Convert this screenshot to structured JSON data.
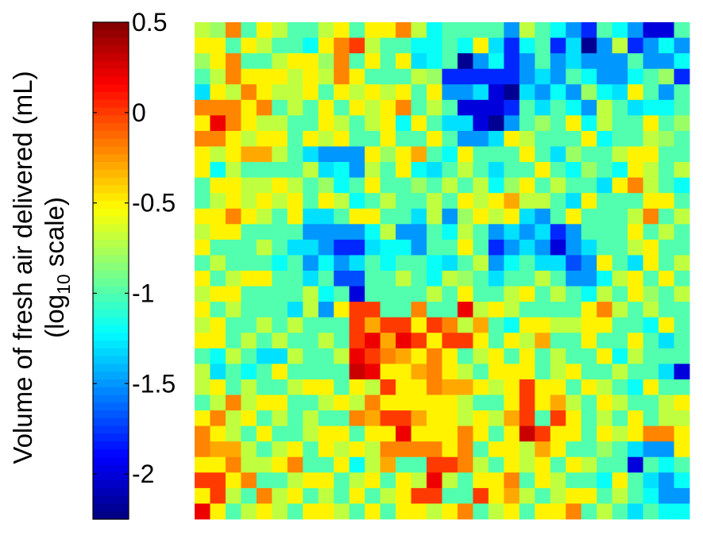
{
  "chart_data": {
    "type": "heatmap",
    "title": "",
    "colorbar": {
      "label_line1": "Volume of fresh air delivered (mL)",
      "label_line2_prefix": "(log",
      "label_line2_sub": "10",
      "label_line2_suffix": " scale)",
      "range": [
        -2.25,
        0.5
      ],
      "ticks": [
        0.5,
        0,
        -0.5,
        -1,
        -1.5,
        -2
      ],
      "tick_labels": [
        "0.5",
        "0",
        "-0.5",
        "-1",
        "-1.5",
        "-2"
      ],
      "colormap": "jet"
    },
    "grid": {
      "rows": 32,
      "cols": 32
    },
    "values": [
      [
        -0.7,
        -0.8,
        -0.2,
        -1.0,
        -0.5,
        -0.7,
        -1.0,
        -1.0,
        -0.7,
        -0.5,
        -1.0,
        -0.5,
        -0.5,
        -0.2,
        -0.7,
        -1.2,
        -1.0,
        -1.0,
        -1.0,
        -1.0,
        -1.5,
        -0.7,
        -1.0,
        -1.2,
        -1.5,
        -1.8,
        -1.0,
        -1.2,
        -1.5,
        -2.0,
        -2.0,
        -1.0
      ],
      [
        -0.5,
        -0.5,
        -1.0,
        -0.5,
        -0.7,
        -1.0,
        -1.0,
        -1.2,
        -0.5,
        -0.2,
        0.0,
        -0.7,
        -1.0,
        -1.0,
        -1.2,
        -1.2,
        -1.0,
        -1.2,
        -0.5,
        -1.3,
        -1.8,
        -1.2,
        -1.0,
        -1.8,
        -1.3,
        -2.2,
        -1.5,
        -0.7,
        -1.8,
        -1.5,
        -1.2,
        -1.5
      ],
      [
        -0.8,
        -0.5,
        -0.2,
        -1.0,
        -1.0,
        -0.7,
        -0.5,
        -0.5,
        -0.8,
        -0.2,
        -1.0,
        -0.5,
        -1.0,
        -0.5,
        -1.3,
        -1.2,
        -1.0,
        -2.2,
        -1.5,
        -1.2,
        -1.8,
        -1.5,
        -1.0,
        -1.5,
        -1.3,
        -1.5,
        -1.5,
        -1.5,
        -1.0,
        -1.5,
        -1.5,
        -1.2
      ],
      [
        -1.0,
        -0.7,
        -0.2,
        -0.5,
        -0.5,
        -0.5,
        -0.7,
        -0.5,
        -0.7,
        -0.2,
        -0.5,
        -1.0,
        -1.0,
        -1.0,
        -0.7,
        -0.8,
        -1.8,
        -1.8,
        -1.8,
        -1.8,
        -1.8,
        -1.5,
        -1.3,
        -1.5,
        -1.0,
        -1.2,
        -1.5,
        -1.5,
        -1.2,
        -1.0,
        -0.8,
        -1.8
      ],
      [
        -1.3,
        -0.5,
        -0.7,
        -0.2,
        -0.5,
        -0.7,
        -0.7,
        -0.5,
        -1.0,
        -0.5,
        -0.7,
        -0.5,
        -0.7,
        -0.5,
        -1.0,
        -0.5,
        -1.5,
        -1.5,
        -1.3,
        -2.0,
        -2.2,
        -1.3,
        -1.5,
        -1.2,
        -1.5,
        -0.8,
        -1.2,
        -1.3,
        -0.5,
        -1.0,
        -1.5,
        -1.0
      ],
      [
        -0.2,
        -0.2,
        -0.2,
        -0.5,
        -0.2,
        -1.0,
        -0.7,
        -1.0,
        -0.5,
        -1.0,
        -0.5,
        -0.7,
        -0.5,
        -0.2,
        -1.0,
        -0.7,
        -1.0,
        -2.0,
        -2.0,
        -2.0,
        -1.8,
        -1.0,
        -1.3,
        -1.0,
        -1.2,
        -1.5,
        -0.7,
        -1.0,
        -1.3,
        -1.2,
        -1.2,
        -1.0
      ],
      [
        -0.5,
        0.2,
        -0.2,
        -0.5,
        -0.7,
        -0.7,
        -1.0,
        -1.0,
        -0.5,
        -0.7,
        -1.0,
        -0.7,
        -0.5,
        -1.2,
        -0.5,
        -1.0,
        -1.3,
        -1.3,
        -2.0,
        -2.2,
        -1.5,
        -1.0,
        -0.8,
        -1.0,
        -0.5,
        -1.2,
        -0.7,
        -1.0,
        -1.0,
        -0.5,
        -1.0,
        -0.8
      ],
      [
        -0.2,
        -0.2,
        -0.5,
        -0.7,
        -0.5,
        -0.5,
        -1.0,
        -0.5,
        -0.7,
        -0.5,
        -1.0,
        -1.0,
        -0.5,
        -1.0,
        -1.0,
        -0.5,
        -1.0,
        -1.5,
        -1.5,
        -1.3,
        -0.5,
        -0.7,
        -1.0,
        -1.0,
        -1.0,
        -0.5,
        -1.2,
        -1.0,
        -1.0,
        -0.7,
        -0.8,
        -1.0
      ],
      [
        -0.5,
        -0.7,
        -0.5,
        -0.3,
        -0.3,
        -0.7,
        -1.0,
        -1.3,
        -1.5,
        -1.5,
        -1.5,
        -0.5,
        -0.8,
        -0.5,
        -0.3,
        -1.0,
        -1.2,
        -0.5,
        -1.0,
        -1.0,
        -1.0,
        -0.5,
        -1.0,
        -1.3,
        -0.8,
        -1.0,
        -1.0,
        -0.7,
        -0.5,
        -0.5,
        -1.0,
        -1.0
      ],
      [
        -0.5,
        -1.2,
        -0.7,
        -1.0,
        -1.0,
        -1.0,
        -1.0,
        -0.7,
        -1.3,
        -1.2,
        -1.5,
        -0.7,
        -1.0,
        -0.5,
        -1.2,
        -1.3,
        -1.0,
        -0.7,
        -1.0,
        -1.3,
        -1.0,
        -1.0,
        -0.5,
        -1.0,
        -1.2,
        -0.8,
        -1.0,
        -1.2,
        -0.5,
        -0.7,
        -1.0,
        -0.7
      ],
      [
        -1.0,
        -0.5,
        -0.5,
        -0.7,
        -0.7,
        -0.5,
        -0.7,
        -1.0,
        -0.8,
        -1.2,
        -1.0,
        -0.5,
        -1.0,
        -1.0,
        -0.8,
        -1.0,
        -0.7,
        -1.0,
        -0.7,
        -1.2,
        -0.8,
        -0.5,
        -1.0,
        -0.7,
        -1.0,
        -1.0,
        -1.3,
        -0.5,
        -0.2,
        -0.7,
        -1.0,
        -1.2
      ],
      [
        -1.0,
        -0.7,
        -0.5,
        -0.7,
        -0.5,
        -0.7,
        -0.5,
        -1.0,
        -0.5,
        -0.7,
        -1.2,
        -1.0,
        -0.7,
        -1.0,
        -1.0,
        -0.7,
        -1.0,
        -0.5,
        -0.7,
        -0.5,
        -0.3,
        -0.7,
        -0.7,
        -1.0,
        -1.3,
        -0.5,
        -1.0,
        -1.0,
        -1.0,
        -0.5,
        -0.5,
        -1.0
      ],
      [
        -0.5,
        -0.5,
        -0.2,
        -0.5,
        -0.7,
        -1.0,
        -0.5,
        -1.3,
        -1.3,
        -1.0,
        -0.5,
        -0.5,
        -1.0,
        -1.0,
        -1.3,
        -0.7,
        -1.5,
        -0.8,
        -0.5,
        -0.7,
        -0.5,
        -1.3,
        -1.5,
        -1.0,
        -0.5,
        -1.0,
        -1.0,
        -1.0,
        -0.7,
        -0.2,
        -1.0,
        -0.7
      ],
      [
        -0.7,
        -0.5,
        -0.5,
        -1.0,
        -1.0,
        -1.0,
        -1.0,
        -1.5,
        -1.5,
        -1.5,
        -1.5,
        -1.2,
        -0.7,
        -1.5,
        -1.5,
        -1.0,
        -1.2,
        -0.7,
        -1.0,
        -1.5,
        -1.3,
        -1.5,
        -1.3,
        -1.8,
        -1.5,
        -1.0,
        -1.0,
        -1.0,
        -0.5,
        -1.0,
        -0.7,
        -1.0
      ],
      [
        -0.5,
        -1.0,
        -1.0,
        -1.0,
        -0.7,
        -1.0,
        -1.3,
        -1.3,
        -1.5,
        -1.8,
        -1.8,
        -1.3,
        -1.2,
        -1.2,
        -1.5,
        -1.0,
        -1.0,
        -0.5,
        -1.0,
        -1.8,
        -1.5,
        -1.3,
        -1.5,
        -2.0,
        -1.5,
        -1.3,
        -1.0,
        -1.0,
        -0.7,
        -0.5,
        -1.0,
        -1.0
      ],
      [
        -1.0,
        -0.7,
        -1.0,
        -1.0,
        -1.0,
        -1.2,
        -1.0,
        -1.5,
        -1.2,
        -1.5,
        -1.3,
        -1.0,
        -1.2,
        -1.0,
        -1.0,
        -1.2,
        -1.3,
        -1.0,
        -0.7,
        -1.5,
        -1.2,
        -1.0,
        -1.3,
        -1.3,
        -1.7,
        -1.5,
        -0.5,
        -1.0,
        -1.3,
        -0.5,
        -1.0,
        -0.7
      ],
      [
        -0.5,
        -1.0,
        -0.7,
        -0.5,
        -0.5,
        -1.0,
        -1.0,
        -1.3,
        -1.0,
        -1.7,
        -1.7,
        -1.0,
        -1.0,
        -0.7,
        -1.0,
        -1.2,
        -0.7,
        -0.8,
        -1.0,
        -1.3,
        -1.0,
        -1.0,
        -0.7,
        -1.0,
        -1.5,
        -1.5,
        -1.2,
        -0.7,
        -0.5,
        -1.0,
        -0.5,
        -1.0
      ],
      [
        -0.7,
        -0.5,
        -0.5,
        -1.0,
        -1.0,
        -1.0,
        -1.0,
        -0.7,
        -1.2,
        -1.0,
        -2.0,
        -1.0,
        -1.0,
        -1.0,
        -1.0,
        -0.7,
        -1.0,
        -0.5,
        -1.0,
        -1.0,
        -0.7,
        -0.5,
        -1.0,
        -0.7,
        -1.0,
        -1.2,
        -0.7,
        -1.0,
        -0.5,
        -0.8,
        -1.0,
        -0.7
      ],
      [
        -0.5,
        -1.0,
        -0.7,
        -1.0,
        -1.0,
        -1.0,
        -1.3,
        -0.7,
        -1.5,
        -0.5,
        0.0,
        0.0,
        -1.0,
        -1.0,
        -0.2,
        -1.0,
        -1.0,
        0.2,
        -0.7,
        -0.5,
        -0.7,
        -1.0,
        -1.0,
        -1.0,
        -1.0,
        -0.5,
        -0.2,
        -0.7,
        -1.0,
        -0.7,
        -1.0,
        -1.0
      ],
      [
        -0.7,
        -0.5,
        -1.0,
        -1.0,
        -0.7,
        -1.0,
        -0.7,
        -1.0,
        -1.0,
        -1.0,
        0.0,
        -0.3,
        0.0,
        0.0,
        -0.5,
        0.0,
        -0.2,
        -0.7,
        -0.3,
        -1.0,
        -1.2,
        -0.5,
        -0.5,
        -0.7,
        -0.7,
        -0.5,
        -0.5,
        -1.0,
        -1.0,
        -1.2,
        -0.5,
        -1.0
      ],
      [
        -0.5,
        -0.5,
        -1.0,
        -0.7,
        -1.0,
        -0.7,
        -1.0,
        -1.0,
        -0.7,
        -1.0,
        0.0,
        0.2,
        -0.3,
        0.2,
        0.0,
        -0.5,
        0.0,
        0.0,
        -0.5,
        -1.0,
        -0.5,
        -0.7,
        -0.3,
        -1.0,
        -1.0,
        -0.5,
        -1.0,
        -1.0,
        -0.5,
        -1.0,
        -1.3,
        -1.0
      ],
      [
        -1.0,
        -1.2,
        -0.7,
        -1.0,
        -1.3,
        -1.3,
        -0.7,
        -1.0,
        -1.0,
        -0.7,
        0.2,
        0.0,
        -0.2,
        -0.3,
        -0.5,
        -0.2,
        -0.5,
        -1.0,
        -0.7,
        -0.5,
        -1.0,
        -0.5,
        -1.0,
        -0.7,
        -1.0,
        -1.0,
        -0.5,
        -1.2,
        -0.7,
        -1.0,
        -1.0,
        -1.0
      ],
      [
        -0.7,
        -1.3,
        -1.0,
        -1.2,
        -1.0,
        -0.5,
        -1.0,
        -1.0,
        -1.0,
        -1.0,
        0.3,
        0.2,
        -0.5,
        -0.5,
        -0.3,
        -0.2,
        -0.5,
        -0.7,
        -1.0,
        -0.5,
        -0.5,
        -0.5,
        -1.0,
        -0.7,
        -0.5,
        -1.0,
        -1.0,
        -0.7,
        -1.0,
        -1.0,
        -1.3,
        -2.0
      ],
      [
        -0.7,
        -0.5,
        -1.0,
        -0.7,
        -1.0,
        -1.0,
        -0.7,
        -0.5,
        -0.5,
        -1.0,
        -0.5,
        -0.7,
        0.0,
        -0.5,
        -0.5,
        -0.2,
        -0.3,
        -0.3,
        -0.5,
        -0.7,
        -0.5,
        0.0,
        -0.5,
        -0.5,
        -1.0,
        -0.5,
        -0.7,
        -1.0,
        -1.2,
        -0.5,
        -1.0,
        -1.0
      ],
      [
        -1.0,
        -0.7,
        -0.2,
        -0.7,
        -0.5,
        -0.5,
        -1.0,
        -1.0,
        -0.7,
        -0.5,
        -0.7,
        -0.2,
        -0.5,
        -0.5,
        -0.5,
        -0.5,
        -0.5,
        -0.7,
        -1.0,
        -1.0,
        -0.5,
        0.0,
        -0.5,
        -0.3,
        -0.7,
        -1.0,
        -0.5,
        -0.7,
        -1.0,
        -1.0,
        -0.7,
        -0.5
      ],
      [
        -0.5,
        -0.2,
        -0.7,
        -0.5,
        -1.0,
        -0.7,
        -1.0,
        -0.7,
        -1.0,
        -1.0,
        -0.2,
        -0.3,
        0.0,
        0.0,
        -0.3,
        -0.5,
        -0.5,
        -0.7,
        -0.5,
        -0.7,
        -0.3,
        0.0,
        -1.0,
        0.0,
        -0.5,
        -1.0,
        -0.7,
        -1.0,
        -0.5,
        -1.0,
        -0.7,
        -0.7
      ],
      [
        -0.2,
        -0.5,
        -0.7,
        -1.0,
        -0.5,
        -1.0,
        -1.0,
        -0.7,
        -0.5,
        -0.5,
        -1.0,
        -0.5,
        -0.5,
        0.2,
        -0.5,
        -0.5,
        -0.5,
        -0.2,
        -0.5,
        -1.0,
        -0.5,
        0.3,
        0.0,
        -0.5,
        -0.5,
        -1.0,
        -0.5,
        -0.7,
        -0.5,
        -0.2,
        -0.2,
        -0.5
      ],
      [
        -0.2,
        -0.3,
        -0.3,
        -0.7,
        -1.0,
        -0.7,
        -0.5,
        -1.0,
        -0.5,
        -0.7,
        -0.5,
        -0.7,
        -0.2,
        -0.2,
        -0.2,
        -0.2,
        -0.5,
        -0.2,
        -1.0,
        -0.5,
        -0.5,
        -0.7,
        -0.3,
        -0.5,
        -1.0,
        -1.0,
        -0.8,
        -1.0,
        -1.3,
        -1.5,
        -1.5,
        -0.5
      ],
      [
        -0.5,
        -0.5,
        -0.2,
        -0.7,
        -0.7,
        -0.5,
        -0.2,
        -1.0,
        -1.0,
        -0.5,
        -1.2,
        -0.7,
        -0.3,
        -1.0,
        -1.0,
        0.0,
        0.0,
        -0.2,
        -0.7,
        -1.0,
        -0.5,
        -0.7,
        -0.5,
        -1.0,
        -0.5,
        -0.7,
        -1.0,
        -1.0,
        -2.0,
        -1.0,
        -1.2,
        -1.0
      ],
      [
        0.0,
        0.0,
        -0.5,
        -0.2,
        -1.0,
        -1.0,
        -0.7,
        -0.5,
        -0.5,
        -1.0,
        -0.7,
        -0.5,
        -1.0,
        -0.5,
        -0.7,
        0.2,
        -0.7,
        -1.0,
        -0.5,
        -0.5,
        -0.2,
        -1.0,
        -0.5,
        -0.7,
        -1.0,
        -1.0,
        -1.2,
        -0.5,
        -1.0,
        -1.3,
        -1.5,
        -1.2
      ],
      [
        -0.5,
        0.0,
        -0.7,
        -1.0,
        -0.2,
        -0.7,
        -0.5,
        -1.0,
        -0.7,
        -1.0,
        -0.5,
        -1.0,
        -0.7,
        -0.5,
        0.0,
        0.0,
        -1.0,
        -1.0,
        0.0,
        -0.5,
        -0.3,
        -0.7,
        -1.0,
        -0.7,
        -0.5,
        -0.5,
        -1.0,
        -0.7,
        -1.0,
        -1.2,
        -1.5,
        -1.5
      ],
      [
        0.2,
        -0.5,
        -1.0,
        -0.7,
        -0.5,
        -0.7,
        -1.0,
        -0.5,
        -0.5,
        -0.7,
        -1.0,
        -0.5,
        -1.0,
        -0.5,
        -0.5,
        -0.7,
        -0.5,
        -0.2,
        -1.0,
        -0.7,
        -0.5,
        -1.0,
        -0.5,
        -0.5,
        -0.2,
        -1.0,
        -0.7,
        -1.0,
        -1.3,
        -1.0,
        -1.2,
        -1.2
      ]
    ]
  }
}
